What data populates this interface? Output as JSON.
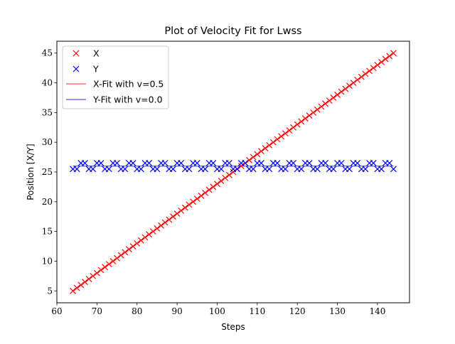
{
  "chart_data": {
    "type": "scatter",
    "title": "Plot of Velocity Fit for Lwss",
    "xlabel": "Steps",
    "ylabel": "Position [X/Y]",
    "xlim": [
      60,
      148
    ],
    "ylim": [
      3,
      47
    ],
    "xticks": [
      60,
      70,
      80,
      90,
      100,
      110,
      120,
      130,
      140
    ],
    "yticks": [
      5,
      10,
      15,
      20,
      25,
      30,
      35,
      40,
      45
    ],
    "grid": false,
    "legend_position": "top-left",
    "x": [
      64,
      65,
      66,
      67,
      68,
      69,
      70,
      71,
      72,
      73,
      74,
      75,
      76,
      77,
      78,
      79,
      80,
      81,
      82,
      83,
      84,
      85,
      86,
      87,
      88,
      89,
      90,
      91,
      92,
      93,
      94,
      95,
      96,
      97,
      98,
      99,
      100,
      101,
      102,
      103,
      104,
      105,
      106,
      107,
      108,
      109,
      110,
      111,
      112,
      113,
      114,
      115,
      116,
      117,
      118,
      119,
      120,
      121,
      122,
      123,
      124,
      125,
      126,
      127,
      128,
      129,
      130,
      131,
      132,
      133,
      134,
      135,
      136,
      137,
      138,
      139,
      140,
      141,
      142,
      143,
      144
    ],
    "series": [
      {
        "name": "X",
        "marker": "x",
        "color": "#ff0000",
        "values": [
          5,
          5.5,
          6,
          6.5,
          7,
          7.5,
          8,
          8.5,
          9,
          9.5,
          10,
          10.5,
          11,
          11.5,
          12,
          12.5,
          13,
          13.5,
          14,
          14.5,
          15,
          15.5,
          16,
          16.5,
          17,
          17.5,
          18,
          18.5,
          19,
          19.5,
          20,
          20.5,
          21,
          21.5,
          22,
          22.5,
          23,
          23.5,
          24,
          24.5,
          25,
          25.5,
          26,
          26.5,
          27,
          27.5,
          28,
          28.5,
          29,
          29.5,
          30,
          30.5,
          31,
          31.5,
          32,
          32.5,
          33,
          33.5,
          34,
          34.5,
          35,
          35.5,
          36,
          36.5,
          37,
          37.5,
          38,
          38.5,
          39,
          39.5,
          40,
          40.5,
          41,
          41.5,
          42,
          42.5,
          43,
          43.5,
          44,
          44.5,
          45
        ]
      },
      {
        "name": "Y",
        "marker": "x",
        "color": "#0000ff",
        "values": [
          25.5,
          25.5,
          26.5,
          26.5,
          25.5,
          25.5,
          26.5,
          26.5,
          25.5,
          25.5,
          26.5,
          26.5,
          25.5,
          25.5,
          26.5,
          26.5,
          25.5,
          25.5,
          26.5,
          26.5,
          25.5,
          25.5,
          26.5,
          26.5,
          25.5,
          25.5,
          26.5,
          26.5,
          25.5,
          25.5,
          26.5,
          26.5,
          25.5,
          25.5,
          26.5,
          26.5,
          25.5,
          25.5,
          26.5,
          26.5,
          25.5,
          25.5,
          26.5,
          26.5,
          25.5,
          25.5,
          26.5,
          26.5,
          25.5,
          25.5,
          26.5,
          26.5,
          25.5,
          25.5,
          26.5,
          26.5,
          25.5,
          25.5,
          26.5,
          26.5,
          25.5,
          25.5,
          26.5,
          26.5,
          25.5,
          25.5,
          26.5,
          26.5,
          25.5,
          25.5,
          26.5,
          26.5,
          25.5,
          25.5,
          26.5,
          26.5,
          25.5,
          25.5,
          26.5,
          26.5,
          25.5
        ]
      }
    ],
    "fits": [
      {
        "name": "X-Fit with v=0.5",
        "type": "line",
        "color": "#ff7070",
        "x": [
          64,
          144
        ],
        "y": [
          5,
          45
        ]
      },
      {
        "name": "Y-Fit with v=0.0",
        "type": "line",
        "color": "#7070ff",
        "x": [
          64,
          144
        ],
        "y": [
          26,
          26
        ]
      }
    ]
  }
}
